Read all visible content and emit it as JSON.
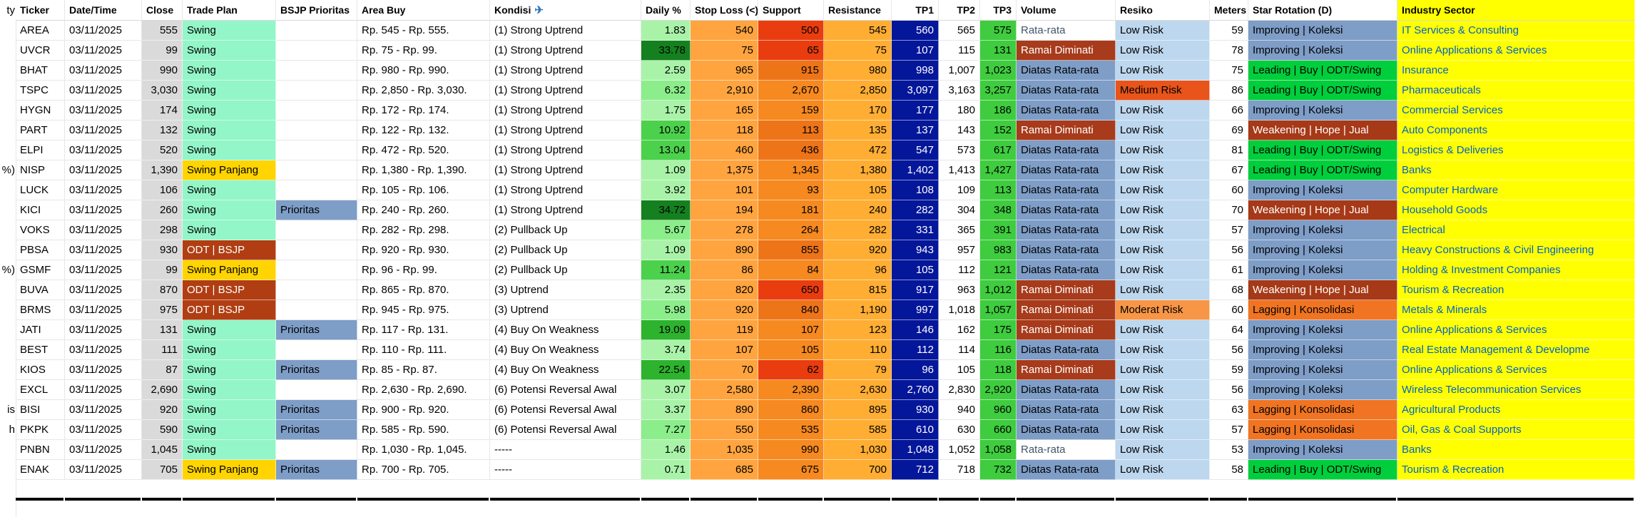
{
  "table": {
    "columns": [
      {
        "key": "ticker",
        "label": "Ticker"
      },
      {
        "key": "date",
        "label": "Date/Time"
      },
      {
        "key": "close",
        "label": "Close"
      },
      {
        "key": "plan",
        "label": "Trade Plan"
      },
      {
        "key": "prioritas",
        "label": "BSJP Prioritas"
      },
      {
        "key": "area",
        "label": "Area Buy"
      },
      {
        "key": "kondisi",
        "label": "Kondisi",
        "icon": "✈"
      },
      {
        "key": "daily",
        "label": "Daily %"
      },
      {
        "key": "stop",
        "label": "Stop Loss (<)"
      },
      {
        "key": "support",
        "label": "Support"
      },
      {
        "key": "resistance",
        "label": "Resistance"
      },
      {
        "key": "tp1",
        "label": "TP1"
      },
      {
        "key": "tp2",
        "label": "TP2"
      },
      {
        "key": "tp3",
        "label": "TP3"
      },
      {
        "key": "volume",
        "label": "Volume"
      },
      {
        "key": "resiko",
        "label": "Resiko"
      },
      {
        "key": "meters",
        "label": "Meters"
      },
      {
        "key": "rotation",
        "label": "Star Rotation (D)"
      },
      {
        "key": "sector",
        "label": "Industry Sector"
      }
    ],
    "rows": [
      {
        "ticker": "AREA",
        "date": "03/11/2025",
        "close": "555",
        "plan": "Swing",
        "prioritas": "",
        "area": "Rp. 545 - Rp. 555.",
        "kondisi": "(1) Strong Uptrend",
        "daily": "1.83",
        "stop": "540",
        "support": "500",
        "support_shade": "red",
        "resistance": "545",
        "tp1": "560",
        "tp2": "565",
        "tp3": "575",
        "volume": "Rata-rata",
        "resiko": "Low Risk",
        "meters": "59",
        "rotation": "Improving | Koleksi",
        "sector": "IT Services & Consulting"
      },
      {
        "ticker": "UVCR",
        "date": "03/11/2025",
        "close": "99",
        "plan": "Swing",
        "prioritas": "",
        "area": "Rp. 75 - Rp. 99.",
        "kondisi": "(1) Strong Uptrend",
        "daily": "33.78",
        "stop": "75",
        "support": "65",
        "support_shade": "red",
        "resistance": "75",
        "tp1": "107",
        "tp2": "115",
        "tp3": "131",
        "volume": "Ramai Diminati",
        "resiko": "Low Risk",
        "meters": "78",
        "rotation": "Improving | Koleksi",
        "sector": "Online Applications & Services"
      },
      {
        "ticker": "BHAT",
        "date": "03/11/2025",
        "close": "990",
        "plan": "Swing",
        "prioritas": "",
        "area": "Rp. 980 - Rp. 990.",
        "kondisi": "(1) Strong Uptrend",
        "daily": "2.59",
        "stop": "965",
        "support": "915",
        "support_shade": "dark",
        "resistance": "980",
        "tp1": "998",
        "tp2": "1,007",
        "tp3": "1,023",
        "volume": "Diatas Rata-rata",
        "resiko": "Low Risk",
        "meters": "75",
        "rotation": "Leading | Buy | ODT/Swing",
        "sector": "Insurance"
      },
      {
        "ticker": "TSPC",
        "date": "03/11/2025",
        "close": "3,030",
        "plan": "Swing",
        "prioritas": "",
        "area": "Rp. 2,850 - Rp. 3,030.",
        "kondisi": "(1) Strong Uptrend",
        "daily": "6.32",
        "stop": "2,910",
        "support": "2,670",
        "support_shade": "normal",
        "resistance": "2,850",
        "tp1": "3,097",
        "tp2": "3,163",
        "tp3": "3,257",
        "volume": "Diatas Rata-rata",
        "resiko": "Medium Risk",
        "meters": "86",
        "rotation": "Leading | Buy | ODT/Swing",
        "sector": "Pharmaceuticals"
      },
      {
        "ticker": "HYGN",
        "date": "03/11/2025",
        "close": "174",
        "plan": "Swing",
        "prioritas": "",
        "area": "Rp. 172 - Rp. 174.",
        "kondisi": "(1) Strong Uptrend",
        "daily": "1.75",
        "stop": "165",
        "support": "159",
        "support_shade": "normal",
        "resistance": "170",
        "tp1": "177",
        "tp2": "180",
        "tp3": "186",
        "volume": "Diatas Rata-rata",
        "resiko": "Low Risk",
        "meters": "66",
        "rotation": "Improving | Koleksi",
        "sector": "Commercial Services"
      },
      {
        "ticker": "PART",
        "date": "03/11/2025",
        "close": "132",
        "plan": "Swing",
        "prioritas": "",
        "area": "Rp. 122 - Rp. 132.",
        "kondisi": "(1) Strong Uptrend",
        "daily": "10.92",
        "stop": "118",
        "support": "113",
        "support_shade": "dark",
        "resistance": "135",
        "tp1": "137",
        "tp2": "143",
        "tp3": "152",
        "volume": "Ramai Diminati",
        "resiko": "Low Risk",
        "meters": "69",
        "rotation": "Weakening | Hope | Jual",
        "sector": "Auto Components"
      },
      {
        "ticker": "ELPI",
        "date": "03/11/2025",
        "close": "520",
        "plan": "Swing",
        "prioritas": "",
        "area": "Rp. 472 - Rp. 520.",
        "kondisi": "(1) Strong Uptrend",
        "daily": "13.04",
        "stop": "460",
        "support": "436",
        "support_shade": "dark",
        "resistance": "472",
        "tp1": "547",
        "tp2": "573",
        "tp3": "617",
        "volume": "Diatas Rata-rata",
        "resiko": "Low Risk",
        "meters": "81",
        "rotation": "Leading | Buy | ODT/Swing",
        "sector": "Logistics & Deliveries"
      },
      {
        "ticker": "NISP",
        "date": "03/11/2025",
        "close": "1,390",
        "plan": "Swing Panjang",
        "prioritas": "",
        "area": "Rp. 1,380 - Rp. 1,390.",
        "kondisi": "(1) Strong Uptrend",
        "daily": "1.09",
        "stop": "1,375",
        "support": "1,345",
        "support_shade": "normal",
        "resistance": "1,380",
        "tp1": "1,402",
        "tp2": "1,413",
        "tp3": "1,427",
        "volume": "Diatas Rata-rata",
        "resiko": "Low Risk",
        "meters": "67",
        "rotation": "Leading | Buy | ODT/Swing",
        "sector": "Banks"
      },
      {
        "ticker": "LUCK",
        "date": "03/11/2025",
        "close": "106",
        "plan": "Swing",
        "prioritas": "",
        "area": "Rp. 105 - Rp. 106.",
        "kondisi": "(1) Strong Uptrend",
        "daily": "3.92",
        "stop": "101",
        "support": "93",
        "support_shade": "normal",
        "resistance": "105",
        "tp1": "108",
        "tp2": "109",
        "tp3": "113",
        "volume": "Diatas Rata-rata",
        "resiko": "Low Risk",
        "meters": "60",
        "rotation": "Improving | Koleksi",
        "sector": "Computer Hardware"
      },
      {
        "ticker": "KICI",
        "date": "03/11/2025",
        "close": "260",
        "plan": "Swing",
        "prioritas": "Prioritas",
        "area": "Rp. 240 - Rp. 260.",
        "kondisi": "(1) Strong Uptrend",
        "daily": "34.72",
        "stop": "194",
        "support": "181",
        "support_shade": "normal",
        "resistance": "240",
        "tp1": "282",
        "tp2": "304",
        "tp3": "348",
        "volume": "Diatas Rata-rata",
        "resiko": "Low Risk",
        "meters": "70",
        "rotation": "Weakening | Hope | Jual",
        "sector": "Household Goods"
      },
      {
        "ticker": "VOKS",
        "date": "03/11/2025",
        "close": "298",
        "plan": "Swing",
        "prioritas": "",
        "area": "Rp. 282 - Rp. 298.",
        "kondisi": "(2) Pullback Up",
        "daily": "5.67",
        "stop": "278",
        "support": "264",
        "support_shade": "normal",
        "resistance": "282",
        "tp1": "331",
        "tp2": "365",
        "tp3": "391",
        "volume": "Diatas Rata-rata",
        "resiko": "Low Risk",
        "meters": "57",
        "rotation": "Improving | Koleksi",
        "sector": "Electrical"
      },
      {
        "ticker": "PBSA",
        "date": "03/11/2025",
        "close": "930",
        "plan": "ODT | BSJP",
        "prioritas": "",
        "area": "Rp. 920 - Rp. 930.",
        "kondisi": "(2) Pullback Up",
        "daily": "1.09",
        "stop": "890",
        "support": "855",
        "support_shade": "dark",
        "resistance": "920",
        "tp1": "943",
        "tp2": "957",
        "tp3": "983",
        "volume": "Diatas Rata-rata",
        "resiko": "Low Risk",
        "meters": "56",
        "rotation": "Improving | Koleksi",
        "sector": "Heavy Constructions & Civil Engineering"
      },
      {
        "ticker": "GSMF",
        "date": "03/11/2025",
        "close": "99",
        "plan": "Swing Panjang",
        "prioritas": "",
        "area": "Rp. 96 - Rp. 99.",
        "kondisi": "(2) Pullback Up",
        "daily": "11.24",
        "stop": "86",
        "support": "84",
        "support_shade": "normal",
        "resistance": "96",
        "tp1": "105",
        "tp2": "112",
        "tp3": "121",
        "volume": "Diatas Rata-rata",
        "resiko": "Low Risk",
        "meters": "61",
        "rotation": "Improving | Koleksi",
        "sector": "Holding & Investment Companies"
      },
      {
        "ticker": "BUVA",
        "date": "03/11/2025",
        "close": "870",
        "plan": "ODT | BSJP",
        "prioritas": "",
        "area": "Rp. 865 - Rp. 870.",
        "kondisi": "(3) Uptrend",
        "daily": "2.35",
        "stop": "820",
        "support": "650",
        "support_shade": "red",
        "resistance": "815",
        "tp1": "917",
        "tp2": "963",
        "tp3": "1,012",
        "volume": "Ramai Diminati",
        "resiko": "Low Risk",
        "meters": "68",
        "rotation": "Weakening | Hope | Jual",
        "sector": "Tourism & Recreation"
      },
      {
        "ticker": "BRMS",
        "date": "03/11/2025",
        "close": "975",
        "plan": "ODT | BSJP",
        "prioritas": "",
        "area": "Rp. 945 - Rp. 975.",
        "kondisi": "(3) Uptrend",
        "daily": "5.98",
        "stop": "920",
        "support": "840",
        "support_shade": "dark",
        "resistance": "1,190",
        "tp1": "997",
        "tp2": "1,018",
        "tp3": "1,057",
        "volume": "Ramai Diminati",
        "resiko": "Moderat Risk",
        "meters": "60",
        "rotation": "Lagging | Konsolidasi",
        "sector": "Metals & Minerals"
      },
      {
        "ticker": "JATI",
        "date": "03/11/2025",
        "close": "131",
        "plan": "Swing",
        "prioritas": "Prioritas",
        "area": "Rp. 117 - Rp. 131.",
        "kondisi": "(4) Buy On Weakness",
        "daily": "19.09",
        "stop": "119",
        "support": "107",
        "support_shade": "normal",
        "resistance": "123",
        "tp1": "146",
        "tp2": "162",
        "tp3": "175",
        "volume": "Ramai Diminati",
        "resiko": "Low Risk",
        "meters": "64",
        "rotation": "Improving | Koleksi",
        "sector": "Online Applications & Services"
      },
      {
        "ticker": "BEST",
        "date": "03/11/2025",
        "close": "111",
        "plan": "Swing",
        "prioritas": "",
        "area": "Rp. 110 - Rp. 111.",
        "kondisi": "(4) Buy On Weakness",
        "daily": "3.74",
        "stop": "107",
        "support": "105",
        "support_shade": "normal",
        "resistance": "110",
        "tp1": "112",
        "tp2": "114",
        "tp3": "116",
        "volume": "Diatas Rata-rata",
        "resiko": "Low Risk",
        "meters": "56",
        "rotation": "Improving | Koleksi",
        "sector": "Real Estate Management & Developme"
      },
      {
        "ticker": "KIOS",
        "date": "03/11/2025",
        "close": "87",
        "plan": "Swing",
        "prioritas": "Prioritas",
        "area": "Rp. 85 - Rp. 87.",
        "kondisi": "(4) Buy On Weakness",
        "daily": "22.54",
        "stop": "70",
        "support": "62",
        "support_shade": "red",
        "resistance": "79",
        "tp1": "96",
        "tp2": "105",
        "tp3": "118",
        "volume": "Ramai Diminati",
        "resiko": "Low Risk",
        "meters": "59",
        "rotation": "Improving | Koleksi",
        "sector": "Online Applications & Services"
      },
      {
        "ticker": "EXCL",
        "date": "03/11/2025",
        "close": "2,690",
        "plan": "Swing",
        "prioritas": "",
        "area": "Rp. 2,630 - Rp. 2,690.",
        "kondisi": "(6) Potensi Reversal Awal",
        "daily": "3.07",
        "stop": "2,580",
        "support": "2,390",
        "support_shade": "normal",
        "resistance": "2,630",
        "tp1": "2,760",
        "tp2": "2,830",
        "tp3": "2,920",
        "volume": "Diatas Rata-rata",
        "resiko": "Low Risk",
        "meters": "56",
        "rotation": "Improving | Koleksi",
        "sector": "Wireless Telecommunication Services"
      },
      {
        "ticker": "BISI",
        "date": "03/11/2025",
        "close": "920",
        "plan": "Swing",
        "prioritas": "Prioritas",
        "area": "Rp. 900 - Rp. 920.",
        "kondisi": "(6) Potensi Reversal Awal",
        "daily": "3.37",
        "stop": "890",
        "support": "860",
        "support_shade": "normal",
        "resistance": "895",
        "tp1": "930",
        "tp2": "940",
        "tp3": "960",
        "volume": "Diatas Rata-rata",
        "resiko": "Low Risk",
        "meters": "63",
        "rotation": "Lagging | Konsolidasi",
        "sector": "Agricultural Products"
      },
      {
        "ticker": "PKPK",
        "date": "03/11/2025",
        "close": "590",
        "plan": "Swing",
        "prioritas": "Prioritas",
        "area": "Rp. 585 - Rp. 590.",
        "kondisi": "(6) Potensi Reversal Awal",
        "daily": "7.27",
        "stop": "550",
        "support": "535",
        "support_shade": "normal",
        "resistance": "585",
        "tp1": "610",
        "tp2": "630",
        "tp3": "660",
        "volume": "Diatas Rata-rata",
        "resiko": "Low Risk",
        "meters": "57",
        "rotation": "Lagging | Konsolidasi",
        "sector": "Oil, Gas & Coal Supports"
      },
      {
        "ticker": "PNBN",
        "date": "03/11/2025",
        "close": "1,045",
        "plan": "Swing",
        "prioritas": "",
        "area": "Rp. 1,030 - Rp. 1,045.",
        "kondisi": "-----",
        "daily": "1.46",
        "stop": "1,035",
        "support": "990",
        "support_shade": "normal",
        "resistance": "1,030",
        "tp1": "1,048",
        "tp2": "1,052",
        "tp3": "1,058",
        "volume": "Rata-rata",
        "resiko": "Low Risk",
        "meters": "53",
        "rotation": "Improving | Koleksi",
        "sector": "Banks"
      },
      {
        "ticker": "ENAK",
        "date": "03/11/2025",
        "close": "705",
        "plan": "Swing Panjang",
        "prioritas": "Prioritas",
        "area": "Rp. 700 - Rp. 705.",
        "kondisi": "-----",
        "daily": "0.71",
        "stop": "685",
        "support": "675",
        "support_shade": "normal",
        "resistance": "700",
        "tp1": "712",
        "tp2": "718",
        "tp3": "732",
        "volume": "Diatas Rata-rata",
        "resiko": "Low Risk",
        "meters": "58",
        "rotation": "Leading | Buy | ODT/Swing",
        "sector": "Tourism & Recreation"
      }
    ]
  },
  "left_strip_fragments": [
    {
      "text": "ty",
      "row": -1
    },
    {
      "text": "%)",
      "row": 7
    },
    {
      "text": "%)",
      "row": 12
    },
    {
      "text": "is",
      "row": 19
    },
    {
      "text": "h",
      "row": 20
    }
  ],
  "palette": {
    "close_bg": "#DADADA",
    "plan": {
      "Swing": {
        "bg": "#93F6C8",
        "fg": "#000000"
      },
      "Swing Panjang": {
        "bg": "#FFD400",
        "fg": "#000000"
      },
      "ODT | BSJP": {
        "bg": "#B03E12",
        "fg": "#FFFFFF"
      }
    },
    "prioritas": {
      "bg": "#7E9DC7",
      "fg": "#000000"
    },
    "daily_levels": [
      {
        "min": 30,
        "bg": "#15801F"
      },
      {
        "min": 15,
        "bg": "#2DB32D"
      },
      {
        "min": 8,
        "bg": "#4CD14C"
      },
      {
        "min": 4,
        "bg": "#8BEE8B"
      },
      {
        "min": 0,
        "bg": "#A9F3A9"
      }
    ],
    "stop_bg": "#FFA43F",
    "support_shades": {
      "normal": "#F6891F",
      "dark": "#EE7418",
      "red": "#E93D0F"
    },
    "resistance_bg": "#FFAD33",
    "tp1": {
      "bg": "#041699",
      "fg": "#FFFFFF"
    },
    "tp3_bg": "#3FCC3F",
    "volume": {
      "Rata-rata": {
        "bg": "",
        "fg": "#44546A"
      },
      "Ramai Diminati": {
        "bg": "#A73B1B",
        "fg": "#FFFFFF"
      },
      "Diatas Rata-rata": {
        "bg": "#7E9DC7",
        "fg": "#000000"
      }
    },
    "resiko": {
      "Low Risk": {
        "bg": "#BDD7EE",
        "fg": "#000000"
      },
      "Medium Risk": {
        "bg": "#E8541A",
        "fg": "#000000"
      },
      "Moderat Risk": {
        "bg": "#F79646",
        "fg": "#000000"
      }
    },
    "rotation": {
      "Improving | Koleksi": {
        "bg": "#7E9DC7",
        "fg": "#000000"
      },
      "Leading | Buy | ODT/Swing": {
        "bg": "#00CE3C",
        "fg": "#000000"
      },
      "Weakening | Hope | Jual": {
        "bg": "#A63917",
        "fg": "#FFFFFF"
      },
      "Lagging | Konsolidasi": {
        "bg": "#F07422",
        "fg": "#000000"
      }
    },
    "sector": {
      "bg": "#FFFF00",
      "fg": "#0062CC"
    }
  }
}
